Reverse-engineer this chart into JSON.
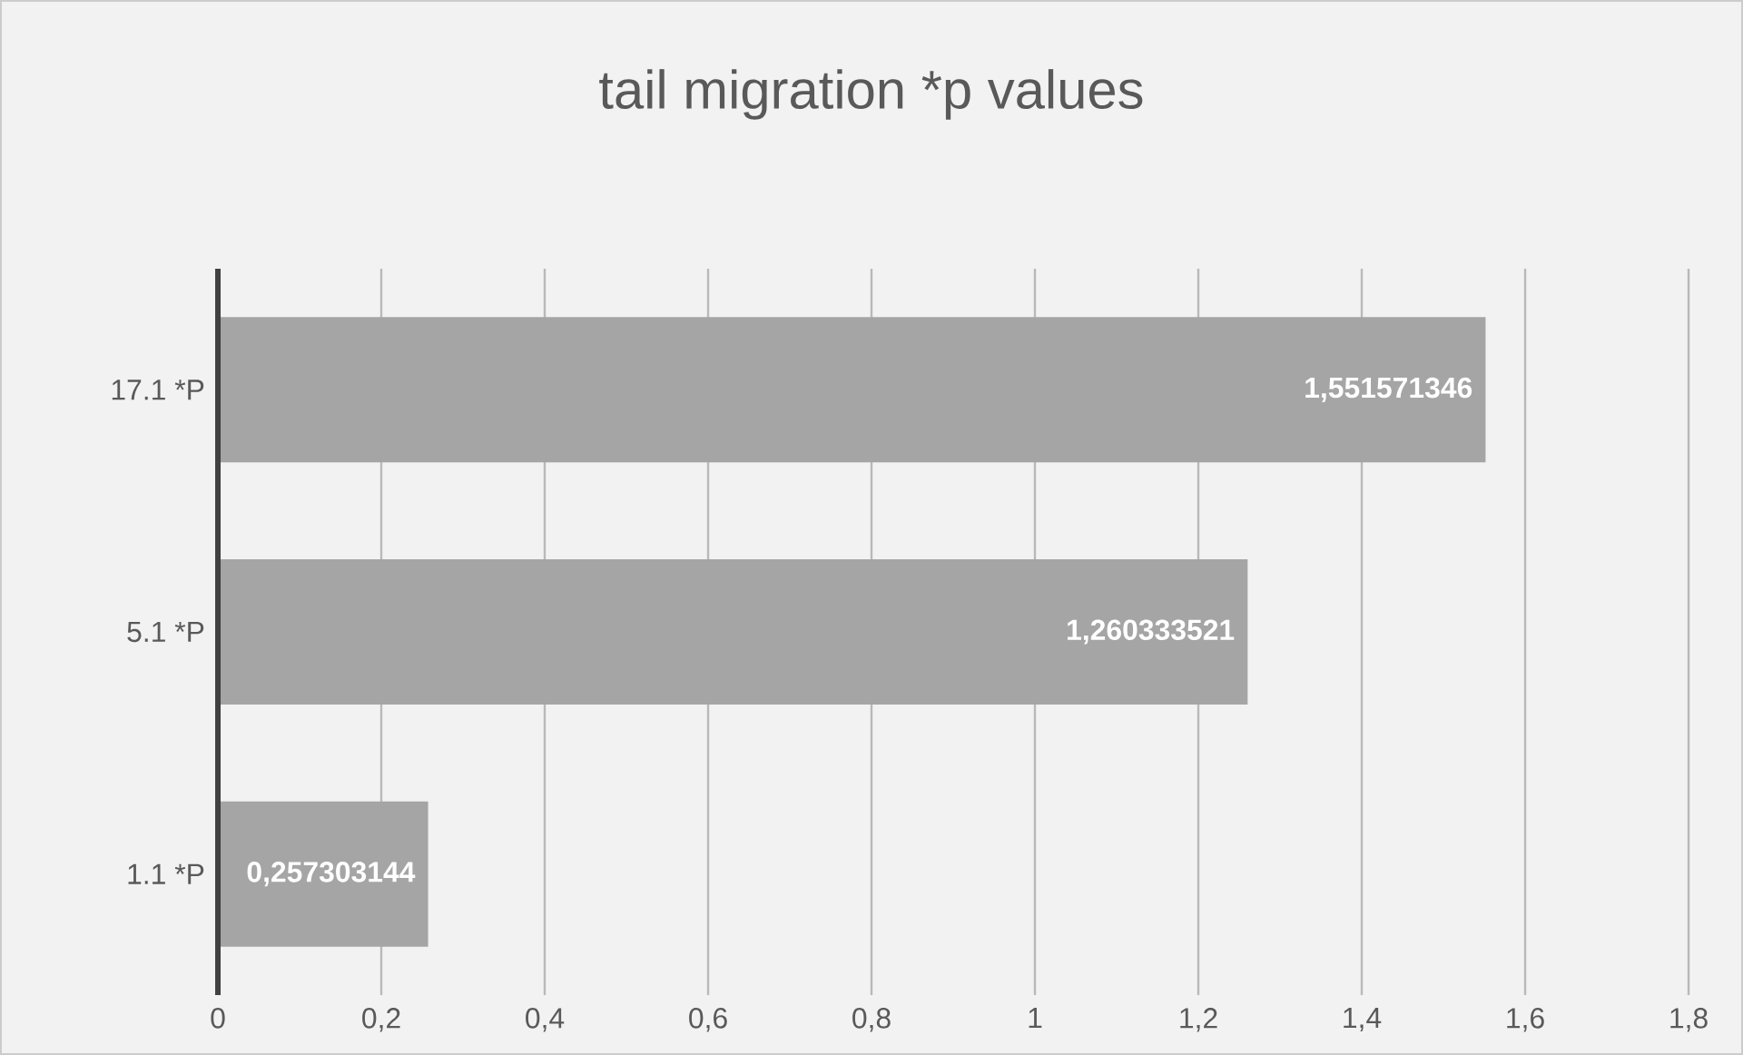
{
  "chart_data": {
    "type": "bar",
    "orientation": "horizontal",
    "title": "tail migration *p values",
    "categories": [
      "17.1 *P",
      "5.1 *P",
      "1.1 *P"
    ],
    "values": [
      1.551571346,
      1.260333521,
      0.257303144
    ],
    "value_labels": [
      "1,551571346",
      "1,260333521",
      "0,257303144"
    ],
    "color": "#a5a5a5",
    "xlim": [
      0,
      1.8
    ],
    "xticks": [
      0,
      {
        "value": 0.2,
        "label": "0,2"
      },
      {
        "value": 0.4,
        "label": "0,4"
      },
      {
        "value": 0.6,
        "label": "0,6"
      },
      {
        "value": 0.8,
        "label": "0,8"
      },
      1,
      {
        "value": 1.2,
        "label": "1,2"
      },
      {
        "value": 1.4,
        "label": "1,4"
      },
      {
        "value": 1.6,
        "label": "1,6"
      },
      {
        "value": 1.8,
        "label": "1,8"
      }
    ],
    "grid": "x"
  }
}
